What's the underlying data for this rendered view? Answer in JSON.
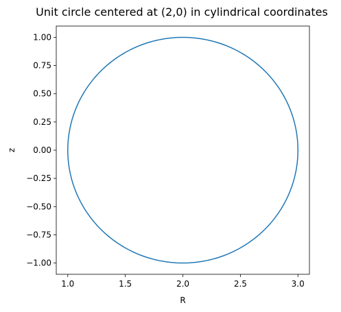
{
  "chart_data": {
    "type": "line",
    "title": "Unit circle centered at (2,0) in cylindrical coordinates",
    "xlabel": "R",
    "ylabel": "z",
    "xlim": [
      0.9,
      3.1
    ],
    "ylim": [
      -1.1,
      1.1
    ],
    "xticks": [
      1.0,
      1.5,
      2.0,
      2.5,
      3.0
    ],
    "xtick_labels": [
      "1.0",
      "1.5",
      "2.0",
      "2.5",
      "3.0"
    ],
    "yticks": [
      1.0,
      0.75,
      0.5,
      0.25,
      0.0,
      -0.25,
      -0.5,
      -0.75,
      -1.0
    ],
    "ytick_labels": [
      "1.00",
      "0.75",
      "0.50",
      "0.25",
      "0.00",
      "−0.25",
      "−0.50",
      "−0.75",
      "−1.00"
    ],
    "grid": false,
    "aspect": "equal",
    "series": [
      {
        "kind": "circle",
        "center": [
          2.0,
          0.0
        ],
        "radius": 1.0,
        "color": "#1f77b4"
      }
    ]
  }
}
